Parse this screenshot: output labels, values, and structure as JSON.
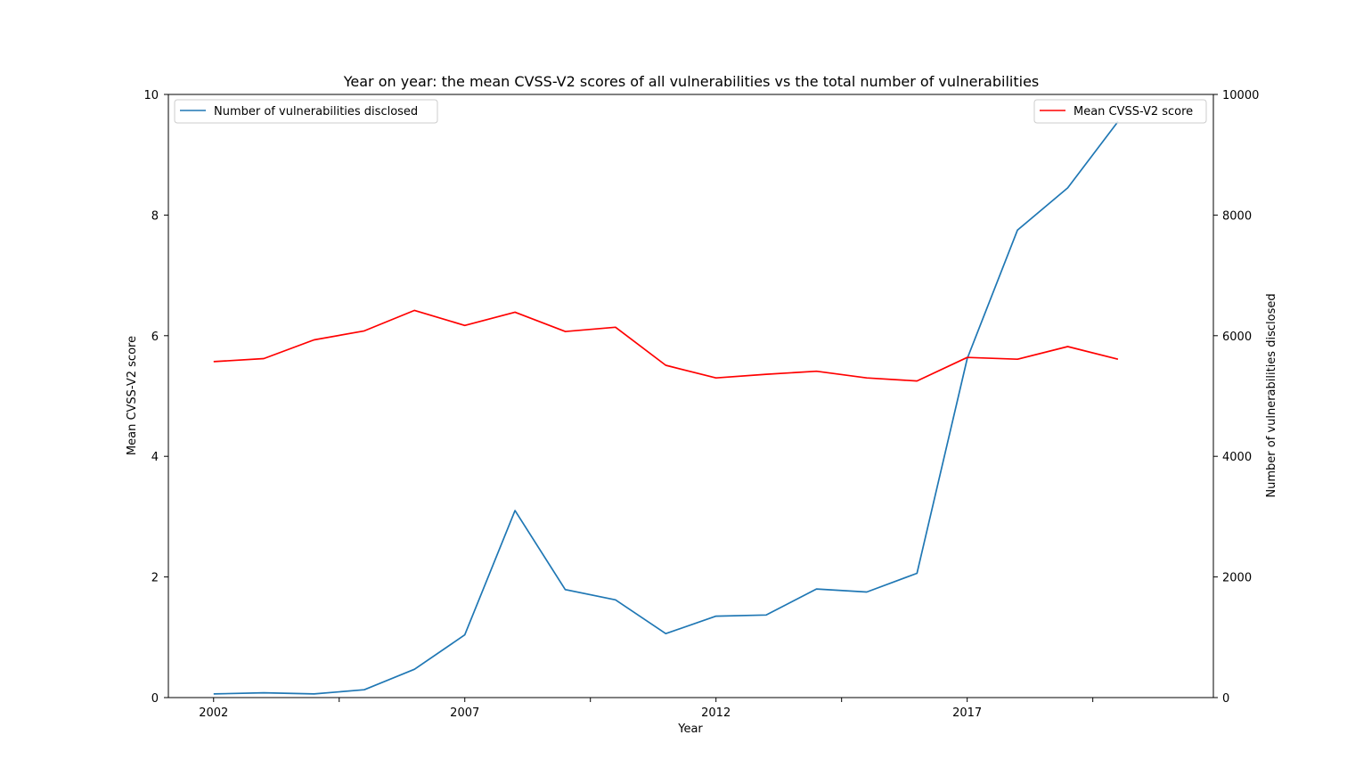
{
  "chart_data": {
    "type": "line",
    "title": "Year on year: the mean CVSS-V2 scores of all vulnerabilities vs the total number of vulnerabilities",
    "xlabel": "Year",
    "ylabel_left": "Mean CVSS-V2 score",
    "ylabel_right": "Number of vulnerabilities disclosed",
    "x": [
      2002,
      2003,
      2004,
      2005,
      2006,
      2007,
      2008,
      2009,
      2010,
      2011,
      2012,
      2013,
      2014,
      2015,
      2016,
      2017,
      2018,
      2019,
      2020
    ],
    "xlim": [
      2001.1,
      2021.9
    ],
    "x_ticks": [
      2002,
      2007,
      2012,
      2017
    ],
    "x_tick_labels": [
      "2002",
      "2007",
      "2012",
      "2017"
    ],
    "x_minor_ticks": [
      2004.5,
      2009.5,
      2014.5,
      2019.5
    ],
    "ylim_left": [
      0,
      10
    ],
    "ylim_right": [
      0,
      10000
    ],
    "y_left_ticks": [
      "0",
      "2",
      "4",
      "6",
      "8",
      "10"
    ],
    "y_right_ticks": [
      "0",
      "2000",
      "4000",
      "6000",
      "8000",
      "10000"
    ],
    "grid": false,
    "series": [
      {
        "name": "Number of vulnerabilities disclosed",
        "axis": "right",
        "color": "#1f77b4",
        "legend_position": "upper-left",
        "values": [
          60,
          80,
          60,
          130,
          470,
          1040,
          3100,
          1790,
          1620,
          1060,
          1350,
          1370,
          1800,
          1750,
          2060,
          5620,
          7750,
          8450,
          9550
        ]
      },
      {
        "name": "Mean CVSS-V2 score",
        "axis": "left",
        "color": "#ff0000",
        "legend_position": "upper-right",
        "values": [
          5.57,
          5.62,
          5.93,
          6.08,
          6.42,
          6.17,
          6.39,
          6.07,
          6.14,
          5.51,
          5.3,
          5.36,
          5.41,
          5.3,
          5.25,
          5.64,
          5.61,
          5.82,
          5.61
        ]
      }
    ]
  }
}
